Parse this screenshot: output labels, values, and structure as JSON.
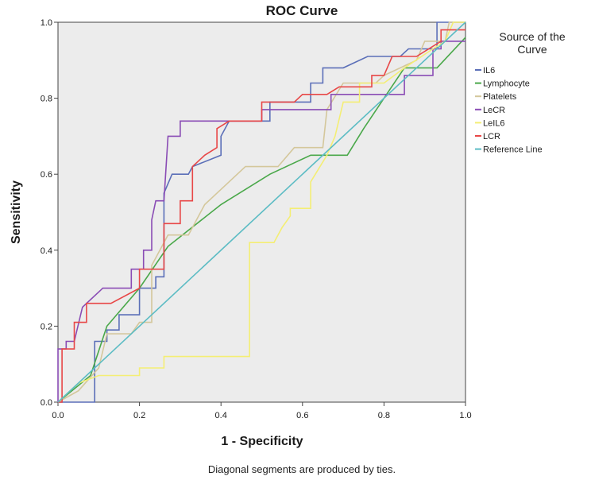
{
  "chart_data": {
    "type": "line",
    "title": "ROC Curve",
    "xlabel": "1 - Specificity",
    "ylabel": "Sensitivity",
    "xlim": [
      0,
      1
    ],
    "ylim": [
      0,
      1
    ],
    "x_ticks": [
      "0.0",
      "0.2",
      "0.4",
      "0.6",
      "0.8",
      "1.0"
    ],
    "y_ticks": [
      "0.0",
      "0.2",
      "0.4",
      "0.6",
      "0.8",
      "1.0"
    ],
    "legend_title": "Source of the Curve",
    "legend_position": "right",
    "footnote": "Diagonal segments are produced by ties.",
    "plot_background": "#ececec",
    "series": [
      {
        "name": "IL6",
        "color": "#5b6fb8",
        "points": [
          [
            0,
            0
          ],
          [
            0.09,
            0
          ],
          [
            0.09,
            0.02
          ],
          [
            0.09,
            0.16
          ],
          [
            0.12,
            0.16
          ],
          [
            0.12,
            0.19
          ],
          [
            0.15,
            0.19
          ],
          [
            0.15,
            0.23
          ],
          [
            0.2,
            0.23
          ],
          [
            0.2,
            0.3
          ],
          [
            0.24,
            0.3
          ],
          [
            0.24,
            0.33
          ],
          [
            0.26,
            0.33
          ],
          [
            0.26,
            0.55
          ],
          [
            0.28,
            0.6
          ],
          [
            0.32,
            0.6
          ],
          [
            0.33,
            0.62
          ],
          [
            0.4,
            0.65
          ],
          [
            0.4,
            0.7
          ],
          [
            0.42,
            0.74
          ],
          [
            0.52,
            0.74
          ],
          [
            0.52,
            0.79
          ],
          [
            0.62,
            0.79
          ],
          [
            0.62,
            0.84
          ],
          [
            0.65,
            0.84
          ],
          [
            0.65,
            0.88
          ],
          [
            0.7,
            0.88
          ],
          [
            0.76,
            0.91
          ],
          [
            0.84,
            0.91
          ],
          [
            0.86,
            0.93
          ],
          [
            0.93,
            0.93
          ],
          [
            0.93,
            1
          ],
          [
            1,
            1
          ]
        ]
      },
      {
        "name": "Lymphocyte",
        "color": "#4aa84a",
        "points": [
          [
            0,
            0
          ],
          [
            0.08,
            0.07
          ],
          [
            0.12,
            0.2
          ],
          [
            0.2,
            0.3
          ],
          [
            0.27,
            0.41
          ],
          [
            0.4,
            0.52
          ],
          [
            0.52,
            0.6
          ],
          [
            0.62,
            0.65
          ],
          [
            0.71,
            0.65
          ],
          [
            0.75,
            0.72
          ],
          [
            0.8,
            0.8
          ],
          [
            0.85,
            0.88
          ],
          [
            0.93,
            0.88
          ],
          [
            1,
            0.96
          ]
        ]
      },
      {
        "name": "Platelets",
        "color": "#d4c79b",
        "points": [
          [
            0,
            0
          ],
          [
            0.05,
            0.03
          ],
          [
            0.1,
            0.09
          ],
          [
            0.12,
            0.18
          ],
          [
            0.18,
            0.18
          ],
          [
            0.2,
            0.21
          ],
          [
            0.23,
            0.21
          ],
          [
            0.23,
            0.36
          ],
          [
            0.27,
            0.44
          ],
          [
            0.32,
            0.44
          ],
          [
            0.36,
            0.52
          ],
          [
            0.4,
            0.56
          ],
          [
            0.46,
            0.62
          ],
          [
            0.54,
            0.62
          ],
          [
            0.58,
            0.67
          ],
          [
            0.65,
            0.67
          ],
          [
            0.66,
            0.77
          ],
          [
            0.7,
            0.84
          ],
          [
            0.78,
            0.84
          ],
          [
            0.8,
            0.86
          ],
          [
            0.88,
            0.9
          ],
          [
            0.9,
            0.95
          ],
          [
            0.95,
            0.95
          ],
          [
            0.96,
            1
          ],
          [
            1,
            1
          ]
        ]
      },
      {
        "name": "LeCR",
        "color": "#8a4cb5",
        "points": [
          [
            0,
            0
          ],
          [
            0,
            0.14
          ],
          [
            0.02,
            0.14
          ],
          [
            0.02,
            0.16
          ],
          [
            0.04,
            0.16
          ],
          [
            0.06,
            0.25
          ],
          [
            0.11,
            0.3
          ],
          [
            0.18,
            0.3
          ],
          [
            0.18,
            0.35
          ],
          [
            0.21,
            0.35
          ],
          [
            0.21,
            0.4
          ],
          [
            0.23,
            0.4
          ],
          [
            0.23,
            0.48
          ],
          [
            0.24,
            0.53
          ],
          [
            0.26,
            0.53
          ],
          [
            0.27,
            0.7
          ],
          [
            0.3,
            0.7
          ],
          [
            0.3,
            0.74
          ],
          [
            0.5,
            0.74
          ],
          [
            0.5,
            0.77
          ],
          [
            0.67,
            0.77
          ],
          [
            0.67,
            0.81
          ],
          [
            0.85,
            0.81
          ],
          [
            0.85,
            0.86
          ],
          [
            0.92,
            0.86
          ],
          [
            0.92,
            0.93
          ],
          [
            0.94,
            0.93
          ],
          [
            0.94,
            0.95
          ],
          [
            1,
            0.95
          ]
        ]
      },
      {
        "name": "LeIL6",
        "color": "#f4ee74",
        "points": [
          [
            0,
            0
          ],
          [
            0.05,
            0.05
          ],
          [
            0.1,
            0.07
          ],
          [
            0.2,
            0.07
          ],
          [
            0.2,
            0.09
          ],
          [
            0.26,
            0.09
          ],
          [
            0.26,
            0.12
          ],
          [
            0.47,
            0.12
          ],
          [
            0.47,
            0.42
          ],
          [
            0.53,
            0.42
          ],
          [
            0.55,
            0.46
          ],
          [
            0.57,
            0.49
          ],
          [
            0.57,
            0.51
          ],
          [
            0.62,
            0.51
          ],
          [
            0.62,
            0.58
          ],
          [
            0.66,
            0.65
          ],
          [
            0.68,
            0.7
          ],
          [
            0.7,
            0.79
          ],
          [
            0.74,
            0.79
          ],
          [
            0.74,
            0.84
          ],
          [
            0.8,
            0.84
          ],
          [
            0.85,
            0.88
          ],
          [
            0.92,
            0.93
          ],
          [
            0.95,
            0.95
          ],
          [
            0.97,
            1
          ],
          [
            1,
            1
          ]
        ]
      },
      {
        "name": "LCR",
        "color": "#e84747",
        "points": [
          [
            0,
            0
          ],
          [
            0.01,
            0
          ],
          [
            0.01,
            0.14
          ],
          [
            0.04,
            0.14
          ],
          [
            0.04,
            0.21
          ],
          [
            0.07,
            0.21
          ],
          [
            0.07,
            0.26
          ],
          [
            0.13,
            0.26
          ],
          [
            0.2,
            0.3
          ],
          [
            0.2,
            0.35
          ],
          [
            0.26,
            0.35
          ],
          [
            0.26,
            0.47
          ],
          [
            0.3,
            0.47
          ],
          [
            0.3,
            0.53
          ],
          [
            0.33,
            0.53
          ],
          [
            0.33,
            0.62
          ],
          [
            0.36,
            0.65
          ],
          [
            0.39,
            0.67
          ],
          [
            0.39,
            0.72
          ],
          [
            0.42,
            0.74
          ],
          [
            0.5,
            0.74
          ],
          [
            0.5,
            0.79
          ],
          [
            0.58,
            0.79
          ],
          [
            0.6,
            0.81
          ],
          [
            0.66,
            0.81
          ],
          [
            0.69,
            0.83
          ],
          [
            0.77,
            0.83
          ],
          [
            0.77,
            0.86
          ],
          [
            0.8,
            0.86
          ],
          [
            0.82,
            0.91
          ],
          [
            0.88,
            0.91
          ],
          [
            0.94,
            0.95
          ],
          [
            0.94,
            0.98
          ],
          [
            1,
            0.98
          ]
        ]
      },
      {
        "name": "Reference Line",
        "color": "#5cbcc4",
        "points": [
          [
            0,
            0
          ],
          [
            1,
            1
          ]
        ]
      }
    ]
  }
}
